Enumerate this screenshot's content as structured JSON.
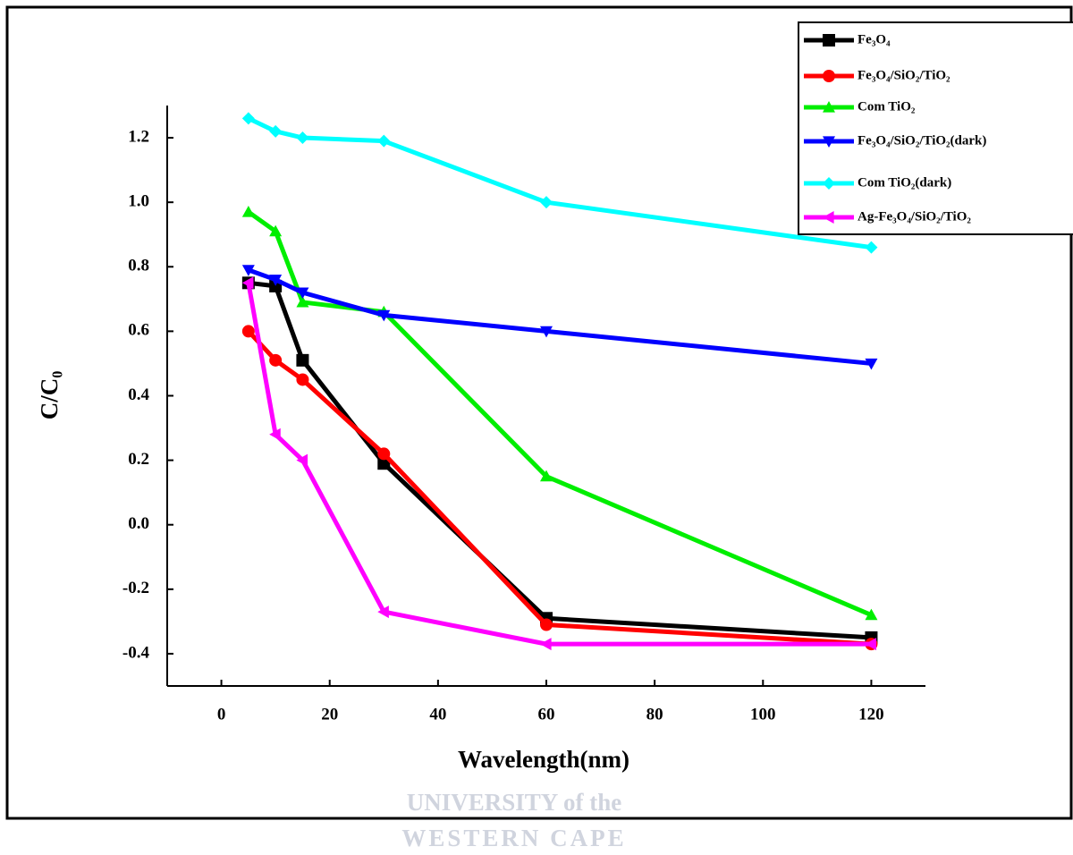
{
  "chart_data": {
    "type": "line",
    "x_label": "Wavelength(nm)",
    "y_label": "C/C₀",
    "x": [
      5,
      10,
      15,
      30,
      60,
      120
    ],
    "xlim": [
      -10,
      130
    ],
    "xticks": [
      0,
      20,
      40,
      60,
      80,
      100,
      120
    ],
    "ylim": [
      -0.5,
      1.3
    ],
    "yticks": [
      {
        "value": -0.4,
        "label": "-0.4"
      },
      {
        "value": -0.2,
        "label": "-0.2"
      },
      {
        "value": 0,
        "label": "0.0"
      },
      {
        "value": 0.2,
        "label": "0.2"
      },
      {
        "value": 0.4,
        "label": "0.4"
      },
      {
        "value": 0.6,
        "label": "0.6"
      },
      {
        "value": 0.8,
        "label": "0.8"
      },
      {
        "value": 1.0,
        "label": "1.0"
      },
      {
        "value": 1.2,
        "label": "1.2"
      }
    ],
    "legend": "upper right",
    "series": [
      {
        "name": "Fe₃O₄",
        "color": "#000000",
        "marker": "square",
        "values": [
          0.75,
          0.74,
          0.51,
          0.19,
          -0.29,
          -0.35
        ]
      },
      {
        "name": "Fe₃O₄/SiO₂/TiO₂",
        "color": "#ff0000",
        "marker": "circle",
        "values": [
          0.6,
          0.51,
          0.45,
          0.22,
          -0.31,
          -0.37
        ]
      },
      {
        "name": "Com TiO₂",
        "color": "#00ee00",
        "marker": "triangle-up",
        "values": [
          0.97,
          0.91,
          0.69,
          0.66,
          0.15,
          -0.28
        ]
      },
      {
        "name": "Fe₃O₄/SiO₂/TiO₂(dark)",
        "color": "#0000ff",
        "marker": "triangle-down",
        "values": [
          0.79,
          0.76,
          0.72,
          0.65,
          0.6,
          0.5
        ]
      },
      {
        "name": "Com TiO₂(dark)",
        "color": "#00ffff",
        "marker": "diamond",
        "values": [
          1.26,
          1.22,
          1.2,
          1.19,
          1.0,
          0.86
        ]
      },
      {
        "name": "Ag-Fe₃O₄/SiO₂/TiO₂",
        "color": "#ff00ff",
        "marker": "triangle-left",
        "values": [
          0.75,
          0.28,
          0.2,
          -0.27,
          -0.37,
          -0.37
        ]
      }
    ],
    "watermark": [
      "UNIVERSITY of the",
      "WESTERN CAPE"
    ]
  }
}
